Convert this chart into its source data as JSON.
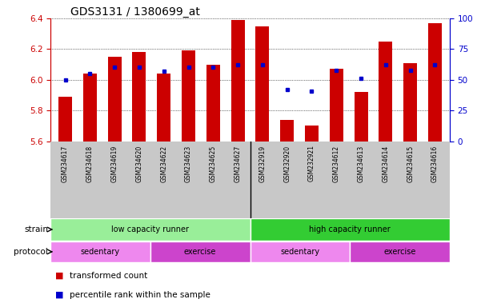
{
  "title": "GDS3131 / 1380699_at",
  "samples": [
    "GSM234617",
    "GSM234618",
    "GSM234619",
    "GSM234620",
    "GSM234622",
    "GSM234623",
    "GSM234625",
    "GSM234627",
    "GSM232919",
    "GSM232920",
    "GSM232921",
    "GSM234612",
    "GSM234613",
    "GSM234614",
    "GSM234615",
    "GSM234616"
  ],
  "bar_values": [
    5.89,
    6.04,
    6.15,
    6.18,
    6.04,
    6.19,
    6.1,
    6.39,
    6.35,
    5.74,
    5.7,
    6.07,
    5.92,
    6.25,
    6.11,
    6.37
  ],
  "percentile_values": [
    50,
    55,
    60,
    60,
    57,
    60,
    60,
    62,
    62,
    42,
    41,
    58,
    51,
    62,
    58,
    62
  ],
  "ylim": [
    5.6,
    6.4
  ],
  "yticks": [
    5.6,
    5.8,
    6.0,
    6.2,
    6.4
  ],
  "right_yticks": [
    0,
    25,
    50,
    75,
    100
  ],
  "bar_color": "#cc0000",
  "dot_color": "#0000cc",
  "bg_color": "#ffffff",
  "strain_groups": [
    {
      "label": "low capacity runner",
      "start": 0,
      "end": 8,
      "color": "#99ee99"
    },
    {
      "label": "high capacity runner",
      "start": 8,
      "end": 16,
      "color": "#33cc33"
    }
  ],
  "protocol_groups": [
    {
      "label": "sedentary",
      "start": 0,
      "end": 4,
      "color": "#ee88ee"
    },
    {
      "label": "exercise",
      "start": 4,
      "end": 8,
      "color": "#cc44cc"
    },
    {
      "label": "sedentary",
      "start": 8,
      "end": 12,
      "color": "#ee88ee"
    },
    {
      "label": "exercise",
      "start": 12,
      "end": 16,
      "color": "#cc44cc"
    }
  ],
  "legend_items": [
    {
      "label": "transformed count",
      "color": "#cc0000"
    },
    {
      "label": "percentile rank within the sample",
      "color": "#0000cc"
    }
  ],
  "bar_width": 0.55,
  "title_fontsize": 10
}
